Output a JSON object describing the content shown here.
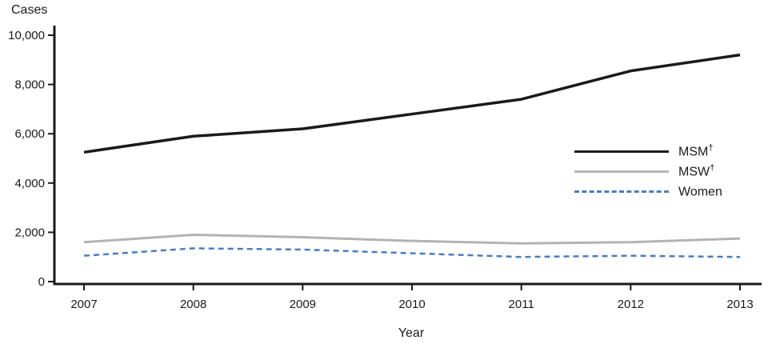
{
  "chart_data": {
    "type": "line",
    "title": "",
    "ylabel": "Cases",
    "xlabel": "Year",
    "x": [
      2007,
      2008,
      2009,
      2010,
      2011,
      2012,
      2013
    ],
    "xtick_labels": [
      "2007",
      "2008",
      "2009",
      "2010",
      "2011",
      "2012",
      "2013"
    ],
    "ylim": [
      0,
      10000
    ],
    "yticks": [
      0,
      2000,
      4000,
      6000,
      8000,
      10000
    ],
    "ytick_labels": [
      "0",
      "2,000",
      "4,000",
      "6,000",
      "8,000",
      "10,000"
    ],
    "grid": false,
    "legend_position": "inside-right",
    "axis_color": "#1a1a1a",
    "series": [
      {
        "name": "MSM",
        "suffix": "†",
        "color": "#1a1a1a",
        "dash": "solid",
        "width": 3.5,
        "values": [
          5250,
          5900,
          6200,
          6800,
          7400,
          8550,
          9200
        ]
      },
      {
        "name": "MSW",
        "suffix": "†",
        "color": "#b3b3b6",
        "dash": "solid",
        "width": 3,
        "values": [
          1600,
          1900,
          1800,
          1650,
          1550,
          1600,
          1750
        ]
      },
      {
        "name": "Women",
        "suffix": "",
        "color": "#4a7ebb",
        "dash": "dashed",
        "width": 2.5,
        "values": [
          1050,
          1350,
          1300,
          1150,
          1000,
          1050,
          1000
        ]
      }
    ]
  }
}
